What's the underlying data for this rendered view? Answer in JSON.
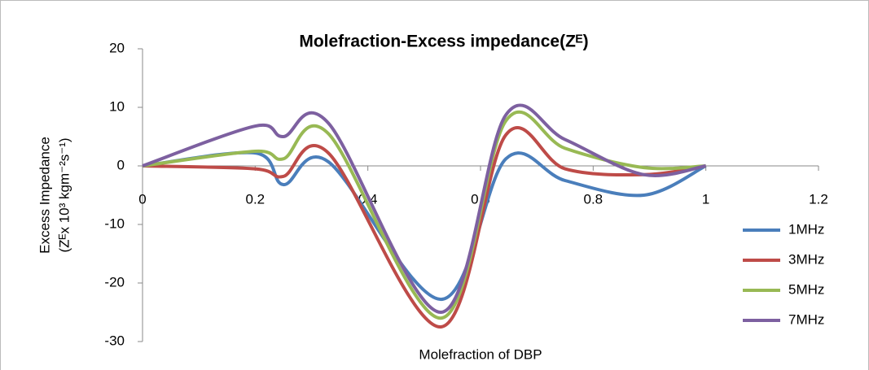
{
  "chart_data": {
    "type": "line",
    "title": "Molefraction-Excess impedance(Zᴱ)",
    "x_label": "Molefraction of DBP",
    "y_label": [
      "Excess Impedance",
      "(Zᴱx 10³ kgm⁻²s⁻¹)"
    ],
    "x": [
      0,
      0.2,
      0.25,
      0.33,
      0.53,
      0.645,
      0.75,
      0.89,
      1
    ],
    "series": [
      {
        "name": "1MHz",
        "color": "#4a7ebb",
        "values": [
          0,
          2.2,
          -3.2,
          0.7,
          -22.8,
          1.2,
          -2.5,
          -5,
          0
        ]
      },
      {
        "name": "3MHz",
        "color": "#be4b48",
        "values": [
          0,
          -0.5,
          -1.8,
          2.2,
          -27.5,
          5.3,
          -0.5,
          -1.5,
          0
        ]
      },
      {
        "name": "5MHz",
        "color": "#98b954",
        "values": [
          0,
          2.5,
          1.2,
          5.5,
          -26,
          7.7,
          3,
          -0.3,
          0
        ]
      },
      {
        "name": "7MHz",
        "color": "#7d60a0",
        "values": [
          0,
          6.8,
          5,
          7.3,
          -25,
          8.7,
          4.5,
          -1.5,
          0
        ]
      }
    ],
    "xlim": [
      0,
      1.2
    ],
    "xticks": [
      0,
      0.2,
      0.4,
      0.6,
      0.8,
      1,
      1.2
    ],
    "ylim": [
      -30,
      20
    ],
    "yticks": [
      -30,
      -20,
      -10,
      0,
      10,
      20
    ],
    "smooth": true,
    "legend": "right"
  }
}
